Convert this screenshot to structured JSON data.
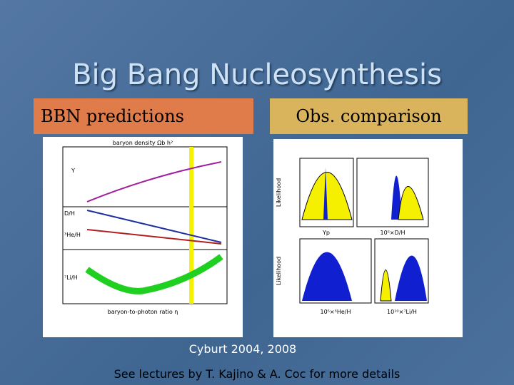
{
  "header": {
    "title": "Big Bang Nucleosynthesis"
  },
  "boxes": [
    "BBN predictions",
    "Obs. comparison"
  ],
  "left_figure": {
    "title": "baryon density Ωb h²",
    "y_labels": [
      "Y",
      "D/H",
      "³He/H",
      "⁷Li/H"
    ],
    "x_label": "baryon-to-photon ratio η"
  },
  "right_figure": {
    "y_label": "Likelihood",
    "x_labels": [
      "Yp",
      "10⁵×D/H",
      "10⁵×³He/H",
      "10¹⁰×⁷Li/H"
    ]
  },
  "citation": "Cyburt 2004, 2008",
  "footer": "See lectures by T. Kajino & A. Coc for more details"
}
